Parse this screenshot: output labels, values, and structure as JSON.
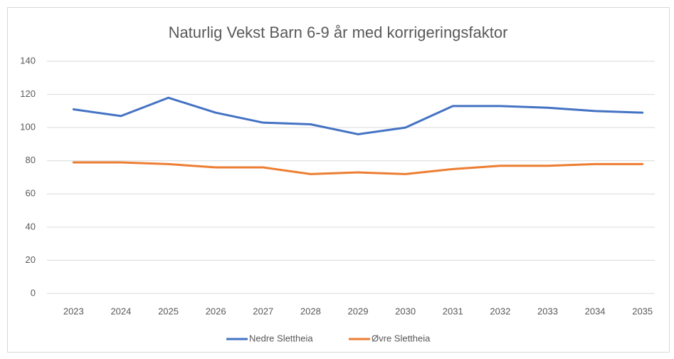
{
  "chart_data": {
    "type": "line",
    "title": "Naturlig Vekst Barn 6-9 år med korrigeringsfaktor",
    "categories": [
      "2023",
      "2024",
      "2025",
      "2026",
      "2027",
      "2028",
      "2029",
      "2030",
      "2031",
      "2032",
      "2033",
      "2034",
      "2035"
    ],
    "series": [
      {
        "name": "Nedre Slettheia",
        "color": "#4472c4",
        "values": [
          111,
          107,
          118,
          109,
          103,
          102,
          96,
          100,
          113,
          113,
          112,
          110,
          109
        ]
      },
      {
        "name": "Øvre Slettheia",
        "color": "#ed7d31",
        "values": [
          79,
          79,
          78,
          76,
          76,
          72,
          73,
          72,
          75,
          77,
          77,
          78,
          78
        ]
      }
    ],
    "ylim": [
      0,
      140
    ],
    "yticks": [
      0,
      20,
      40,
      60,
      80,
      100,
      120,
      140
    ],
    "grid": true,
    "legend": "bottom"
  }
}
